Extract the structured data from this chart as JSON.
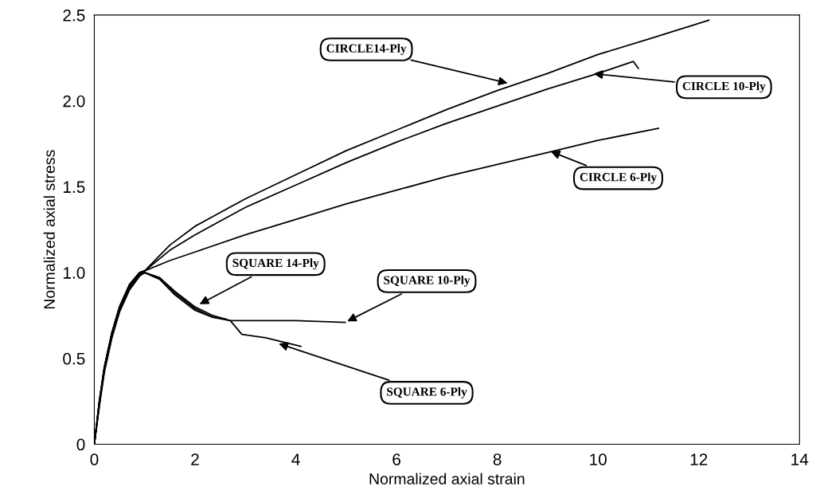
{
  "chart_data": {
    "type": "line",
    "xlabel": "Normalized axial strain",
    "ylabel": "Normalized axial stress",
    "xlim": [
      0,
      14
    ],
    "ylim": [
      0,
      2.5
    ],
    "xticks": [
      0,
      2,
      4,
      6,
      8,
      10,
      12,
      14
    ],
    "yticks": [
      0,
      0.5,
      {
        "value": 1,
        "label": "1.0"
      },
      1.5,
      {
        "value": 2,
        "label": "2.0"
      },
      2.5
    ],
    "grid": false,
    "legend": false,
    "marker": "none",
    "line_style": "solid",
    "series": [
      {
        "color": "#000000",
        "x": [
          0,
          0.1,
          0.2,
          0.35,
          0.5,
          0.7,
          0.9,
          1,
          1.5,
          2,
          3,
          4,
          5,
          6,
          7,
          8,
          9,
          10,
          11,
          12.2
        ],
        "values": [
          0,
          0.25,
          0.45,
          0.65,
          0.8,
          0.93,
          1.0,
          1.01,
          1.16,
          1.27,
          1.43,
          1.57,
          1.71,
          1.83,
          1.95,
          2.06,
          2.16,
          2.27,
          2.36,
          2.47
        ]
      },
      {
        "color": "#000000",
        "x": [
          0,
          0.1,
          0.2,
          0.35,
          0.5,
          0.7,
          0.9,
          1,
          1.5,
          2,
          3,
          4,
          5,
          6,
          7,
          8,
          9,
          10,
          10.7,
          10.8
        ],
        "values": [
          0,
          0.25,
          0.45,
          0.65,
          0.8,
          0.93,
          1.0,
          1.01,
          1.13,
          1.22,
          1.38,
          1.51,
          1.64,
          1.76,
          1.87,
          1.97,
          2.07,
          2.16,
          2.23,
          2.19
        ]
      },
      {
        "color": "#000000",
        "x": [
          0,
          0.1,
          0.2,
          0.35,
          0.5,
          0.7,
          0.9,
          1,
          1.5,
          2,
          3,
          4,
          5,
          6,
          7,
          8,
          9,
          10,
          11.2
        ],
        "values": [
          0,
          0.25,
          0.45,
          0.65,
          0.8,
          0.93,
          1.0,
          1.01,
          1.07,
          1.12,
          1.22,
          1.31,
          1.4,
          1.48,
          1.56,
          1.63,
          1.7,
          1.77,
          1.84
        ]
      },
      {
        "color": "#000000",
        "x": [
          0,
          0.1,
          0.2,
          0.35,
          0.5,
          0.7,
          0.9,
          1,
          1.3,
          1.6,
          2,
          2.35,
          2.6
        ],
        "values": [
          0,
          0.24,
          0.44,
          0.64,
          0.79,
          0.92,
          0.99,
          1.0,
          0.97,
          0.88,
          0.79,
          0.74,
          0.73
        ]
      },
      {
        "color": "#000000",
        "x": [
          0,
          0.1,
          0.2,
          0.35,
          0.5,
          0.7,
          0.9,
          1,
          1.3,
          1.6,
          2,
          2.35,
          2.7,
          4,
          4.98
        ],
        "values": [
          0,
          0.23,
          0.43,
          0.63,
          0.78,
          0.91,
          0.99,
          1.0,
          0.97,
          0.89,
          0.8,
          0.75,
          0.72,
          0.72,
          0.71
        ]
      },
      {
        "color": "#000000",
        "x": [
          0,
          0.1,
          0.2,
          0.35,
          0.5,
          0.7,
          0.9,
          1,
          1.3,
          1.6,
          2,
          2.35,
          2.7,
          2.93,
          3.4,
          4.1
        ],
        "values": [
          0,
          0.22,
          0.42,
          0.62,
          0.77,
          0.9,
          0.98,
          1.0,
          0.96,
          0.87,
          0.78,
          0.74,
          0.72,
          0.64,
          0.62,
          0.57
        ]
      }
    ],
    "annotations": [
      {
        "text": "CIRCLE14-Ply",
        "x": 8.25,
        "y": 2.1
      },
      {
        "text": "CIRCLE 10-Ply",
        "x": 9.87,
        "y": 2.16
      },
      {
        "text": "CIRCLE 6-Ply",
        "x": 9.02,
        "y": 1.71
      },
      {
        "text": "SQUARE 14-Ply",
        "x": 2.05,
        "y": 0.81
      },
      {
        "text": "SQUARE 10-Ply",
        "x": 4.98,
        "y": 0.71
      },
      {
        "text": "SQUARE 6-Ply",
        "x": 3.62,
        "y": 0.59
      }
    ]
  }
}
